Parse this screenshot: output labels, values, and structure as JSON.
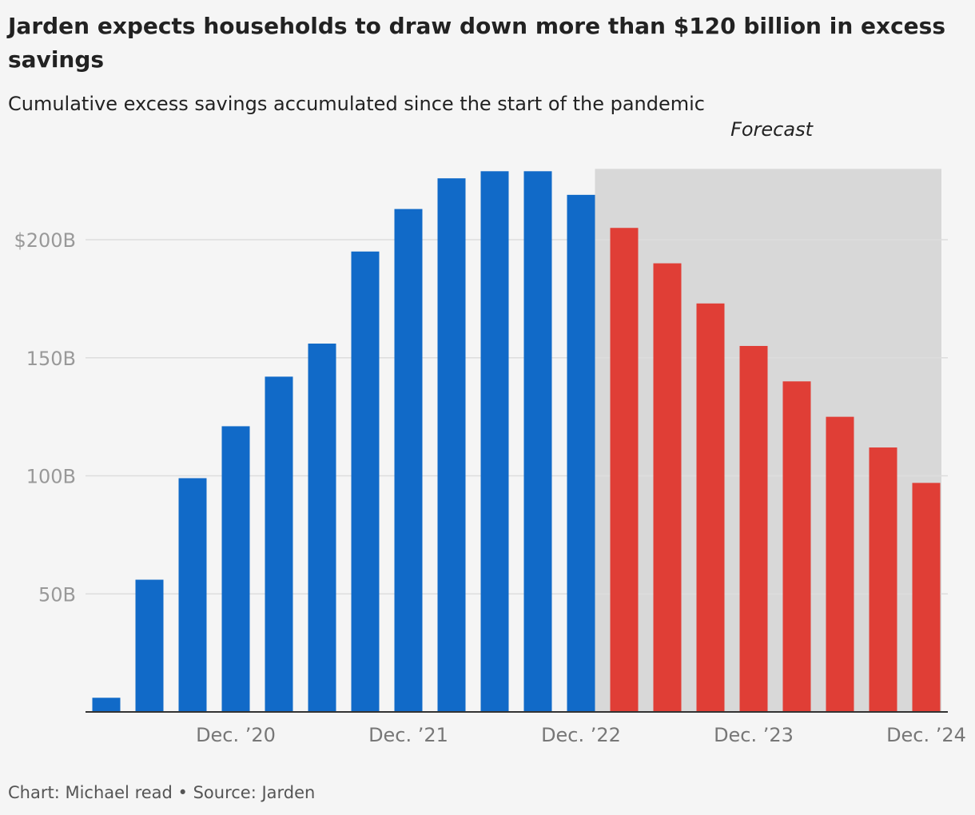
{
  "chart_data": {
    "type": "bar",
    "title": "Jarden expects households to draw down more than $120 billion in excess savings",
    "subtitle": "Cumulative excess savings accumulated since the start of the pandemic",
    "xlabel": "",
    "ylabel": "",
    "ylim": [
      0,
      230
    ],
    "y_ticks": [
      {
        "value": 50,
        "label": "50B"
      },
      {
        "value": 100,
        "label": "100B"
      },
      {
        "value": 150,
        "label": "150B"
      },
      {
        "value": 200,
        "label": "$200B"
      }
    ],
    "x_ticks": [
      {
        "index": 3,
        "label": "Dec. ’20"
      },
      {
        "index": 7,
        "label": "Dec. ’21"
      },
      {
        "index": 11,
        "label": "Dec. ’22"
      },
      {
        "index": 15,
        "label": "Dec. ’23"
      },
      {
        "index": 19,
        "label": "Dec. ’24"
      }
    ],
    "values": [
      6,
      56,
      99,
      121,
      142,
      156,
      195,
      213,
      226,
      229,
      229,
      219,
      205,
      190,
      173,
      155,
      140,
      125,
      112,
      97
    ],
    "forecast_start_index": 12,
    "annotation": "Forecast",
    "grid": true,
    "colors": {
      "actual": "#116ac8",
      "forecast": "#e03e36",
      "forecast_shade": "#d8d8d8",
      "grid": "#dddddd",
      "axis": "#333333"
    }
  },
  "footer": "Chart: Michael read • Source: Jarden"
}
